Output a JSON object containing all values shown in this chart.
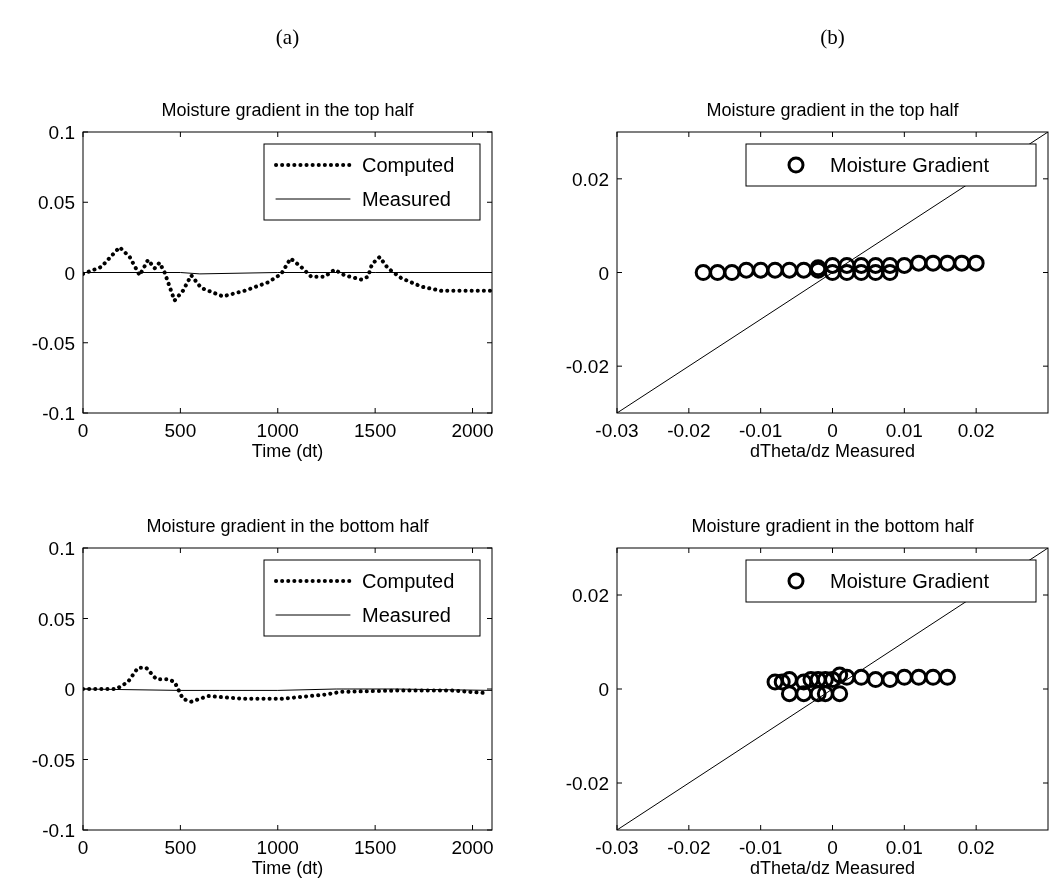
{
  "chart_data": [
    {
      "type": "line",
      "title": "Moisture gradient in the top half",
      "xlabel": "Time (dt)",
      "annotations": [
        "(a)"
      ],
      "xlim": [
        0,
        2100
      ],
      "xticks": [
        0,
        500,
        1000,
        1500,
        2000
      ],
      "ylim": [
        -0.1,
        0.1
      ],
      "yticks": [
        -0.1,
        -0.05,
        0,
        0.05,
        0.1
      ],
      "legend": "top right",
      "grid": false,
      "series": [
        {
          "name": "Computed",
          "color": "#000000",
          "line_style": "dotted",
          "x": [
            0,
            94,
            188,
            240,
            291,
            334,
            368,
            393,
            419,
            470,
            513,
            556,
            607,
            718,
            830,
            950,
            1018,
            1066,
            1120,
            1172,
            1240,
            1292,
            1343,
            1429,
            1463,
            1484,
            1523,
            1566,
            1634,
            1737,
            1840,
            2096
          ],
          "values": [
            -0.001,
            0.004,
            0.018,
            0.011,
            -0.002,
            0.009,
            0.003,
            0.007,
            0,
            -0.02,
            -0.013,
            -0.002,
            -0.011,
            -0.017,
            -0.013,
            -0.007,
            -0.001,
            0.01,
            0.004,
            -0.003,
            -0.003,
            0.002,
            -0.002,
            -0.005,
            -0.003,
            0.006,
            0.011,
            0.003,
            -0.004,
            -0.01,
            -0.013,
            -0.013
          ]
        },
        {
          "name": "Measured",
          "color": "#000000",
          "line_style": "solid",
          "x": [
            0,
            500,
            600,
            1000,
            1500,
            2100
          ],
          "values": [
            0,
            0,
            -0.001,
            0,
            0,
            0
          ]
        }
      ]
    },
    {
      "type": "scatter",
      "title": "Moisture gradient in the top half",
      "xlabel": "dTheta/dz Measured",
      "annotations": [
        "(b)"
      ],
      "xlim": [
        -0.03,
        0.03
      ],
      "xticks": [
        -0.03,
        -0.02,
        -0.01,
        0,
        0.01,
        0.02
      ],
      "ylim": [
        -0.03,
        0.03
      ],
      "yticks": [
        -0.02,
        0,
        0.02
      ],
      "legend": "top right",
      "grid": false,
      "marker": "circle",
      "series": [
        {
          "name": "Moisture Gradient",
          "color": "#000000",
          "x": [
            -0.018,
            -0.016,
            -0.014,
            -0.012,
            -0.01,
            -0.008,
            -0.006,
            -0.004,
            -0.002,
            0,
            0.002,
            0.004,
            0.006,
            0.008,
            -0.002,
            0,
            0.002,
            0.004,
            0.006,
            0.008,
            0.01,
            0.012,
            0.014,
            0.016,
            0.018,
            0.02
          ],
          "values": [
            0,
            0,
            0,
            0.0005,
            0.0005,
            0.0005,
            0.0005,
            0.0005,
            0.0005,
            0,
            0,
            0,
            0,
            0,
            0.001,
            0.0015,
            0.0015,
            0.0015,
            0.0015,
            0.0015,
            0.0015,
            0.002,
            0.002,
            0.002,
            0.002,
            0.002
          ]
        },
        {
          "type": "line",
          "color": "#000000",
          "marker": "none",
          "x": [
            -0.03,
            0.03
          ],
          "values": [
            -0.03,
            0.03
          ]
        }
      ]
    },
    {
      "type": "line",
      "title": "Moisture gradient in the bottom half",
      "xlabel": "Time (dt)",
      "xlim": [
        0,
        2100
      ],
      "xticks": [
        0,
        500,
        1000,
        1500,
        2000
      ],
      "ylim": [
        -0.1,
        0.1
      ],
      "yticks": [
        -0.1,
        -0.05,
        0,
        0.05,
        0.1
      ],
      "legend": "top right",
      "grid": false,
      "series": [
        {
          "name": "Computed",
          "color": "#000000",
          "line_style": "dotted",
          "x": [
            0,
            171,
            231,
            282,
            325,
            376,
            436,
            470,
            513,
            556,
            642,
            830,
            1018,
            1240,
            1326,
            1634,
            1890,
            2078
          ],
          "values": [
            0,
            0,
            0.005,
            0.015,
            0.015,
            0.007,
            0.007,
            0.005,
            -0.007,
            -0.009,
            -0.005,
            -0.007,
            -0.007,
            -0.004,
            -0.002,
            -0.001,
            -0.001,
            -0.003
          ]
        },
        {
          "name": "Measured",
          "color": "#000000",
          "line_style": "solid",
          "x": [
            0,
            500,
            700,
            1000,
            1300,
            1600,
            2100
          ],
          "values": [
            0,
            -0.001,
            -0.001,
            -0.001,
            0,
            0,
            -0.001
          ]
        }
      ]
    },
    {
      "type": "scatter",
      "title": "Moisture gradient in the bottom half",
      "xlabel": "dTheta/dz Measured",
      "xlim": [
        -0.03,
        0.03
      ],
      "xticks": [
        -0.03,
        -0.02,
        -0.01,
        0,
        0.01,
        0.02
      ],
      "ylim": [
        -0.03,
        0.03
      ],
      "yticks": [
        -0.02,
        0,
        0.02
      ],
      "legend": "top right",
      "grid": false,
      "marker": "circle",
      "series": [
        {
          "name": "Moisture Gradient",
          "color": "#000000",
          "x": [
            -0.008,
            -0.007,
            -0.006,
            -0.004,
            -0.003,
            -0.002,
            -0.001,
            0,
            0.001,
            0.002,
            -0.006,
            -0.004,
            -0.002,
            -0.001,
            0.001,
            0.004,
            0.006,
            0.008,
            0.01,
            0.012,
            0.014,
            0.016
          ],
          "values": [
            0.0015,
            0.0015,
            0.002,
            0.0015,
            0.002,
            0.002,
            0.002,
            0.002,
            0.003,
            0.0025,
            -0.001,
            -0.001,
            -0.001,
            -0.001,
            -0.001,
            0.0025,
            0.002,
            0.002,
            0.0025,
            0.0025,
            0.0025,
            0.0025
          ]
        },
        {
          "type": "line",
          "color": "#000000",
          "marker": "none",
          "x": [
            -0.03,
            0.03
          ],
          "values": [
            -0.03,
            0.03
          ]
        }
      ]
    }
  ]
}
